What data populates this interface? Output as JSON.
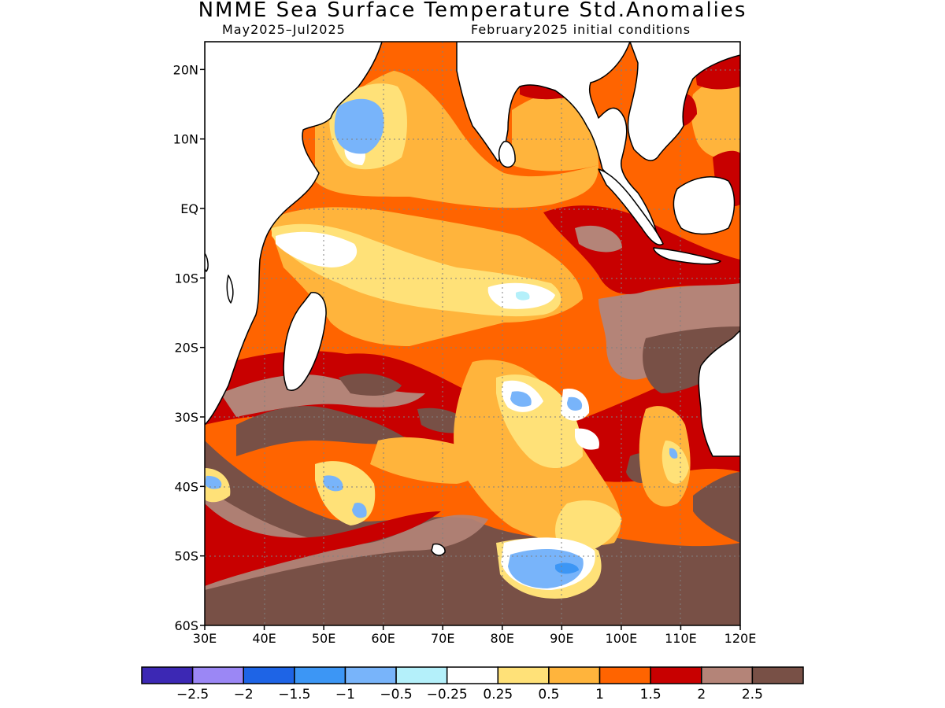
{
  "title": "NMME Sea Surface Temperature Std.Anomalies",
  "subtitle_left": "May2025–Jul2025",
  "subtitle_right": "February2025 initial conditions",
  "map": {
    "lon_range": [
      30,
      120
    ],
    "lat_range": [
      -60,
      24
    ],
    "lat_ticks": [
      {
        "value": 20,
        "label": "20N"
      },
      {
        "value": 10,
        "label": "10N"
      },
      {
        "value": 0,
        "label": "EQ"
      },
      {
        "value": -10,
        "label": "10S"
      },
      {
        "value": -20,
        "label": "20S"
      },
      {
        "value": -30,
        "label": "30S"
      },
      {
        "value": -40,
        "label": "40S"
      },
      {
        "value": -50,
        "label": "50S"
      },
      {
        "value": -60,
        "label": "60S"
      }
    ],
    "lon_ticks": [
      {
        "value": 30,
        "label": "30E"
      },
      {
        "value": 40,
        "label": "40E"
      },
      {
        "value": 50,
        "label": "50E"
      },
      {
        "value": 60,
        "label": "60E"
      },
      {
        "value": 70,
        "label": "70E"
      },
      {
        "value": 80,
        "label": "80E"
      },
      {
        "value": 90,
        "label": "90E"
      },
      {
        "value": 100,
        "label": "100E"
      },
      {
        "value": 110,
        "label": "110E"
      },
      {
        "value": 120,
        "label": "120E"
      }
    ],
    "grid": "dotted"
  },
  "colorbar": {
    "colors": [
      "#3c28b4",
      "#9b87f5",
      "#1e64e6",
      "#3c96f5",
      "#78b4fa",
      "#b4f0fa",
      "#ffffff",
      "#ffe178",
      "#ffb43c",
      "#ff6400",
      "#c80000",
      "#b48478",
      "#785046"
    ],
    "labels": [
      "−2.5",
      "−2",
      "−1.5",
      "−1",
      "−0.5",
      "−0.25",
      "0.25",
      "0.5",
      "1",
      "1.5",
      "2",
      "2.5"
    ]
  }
}
